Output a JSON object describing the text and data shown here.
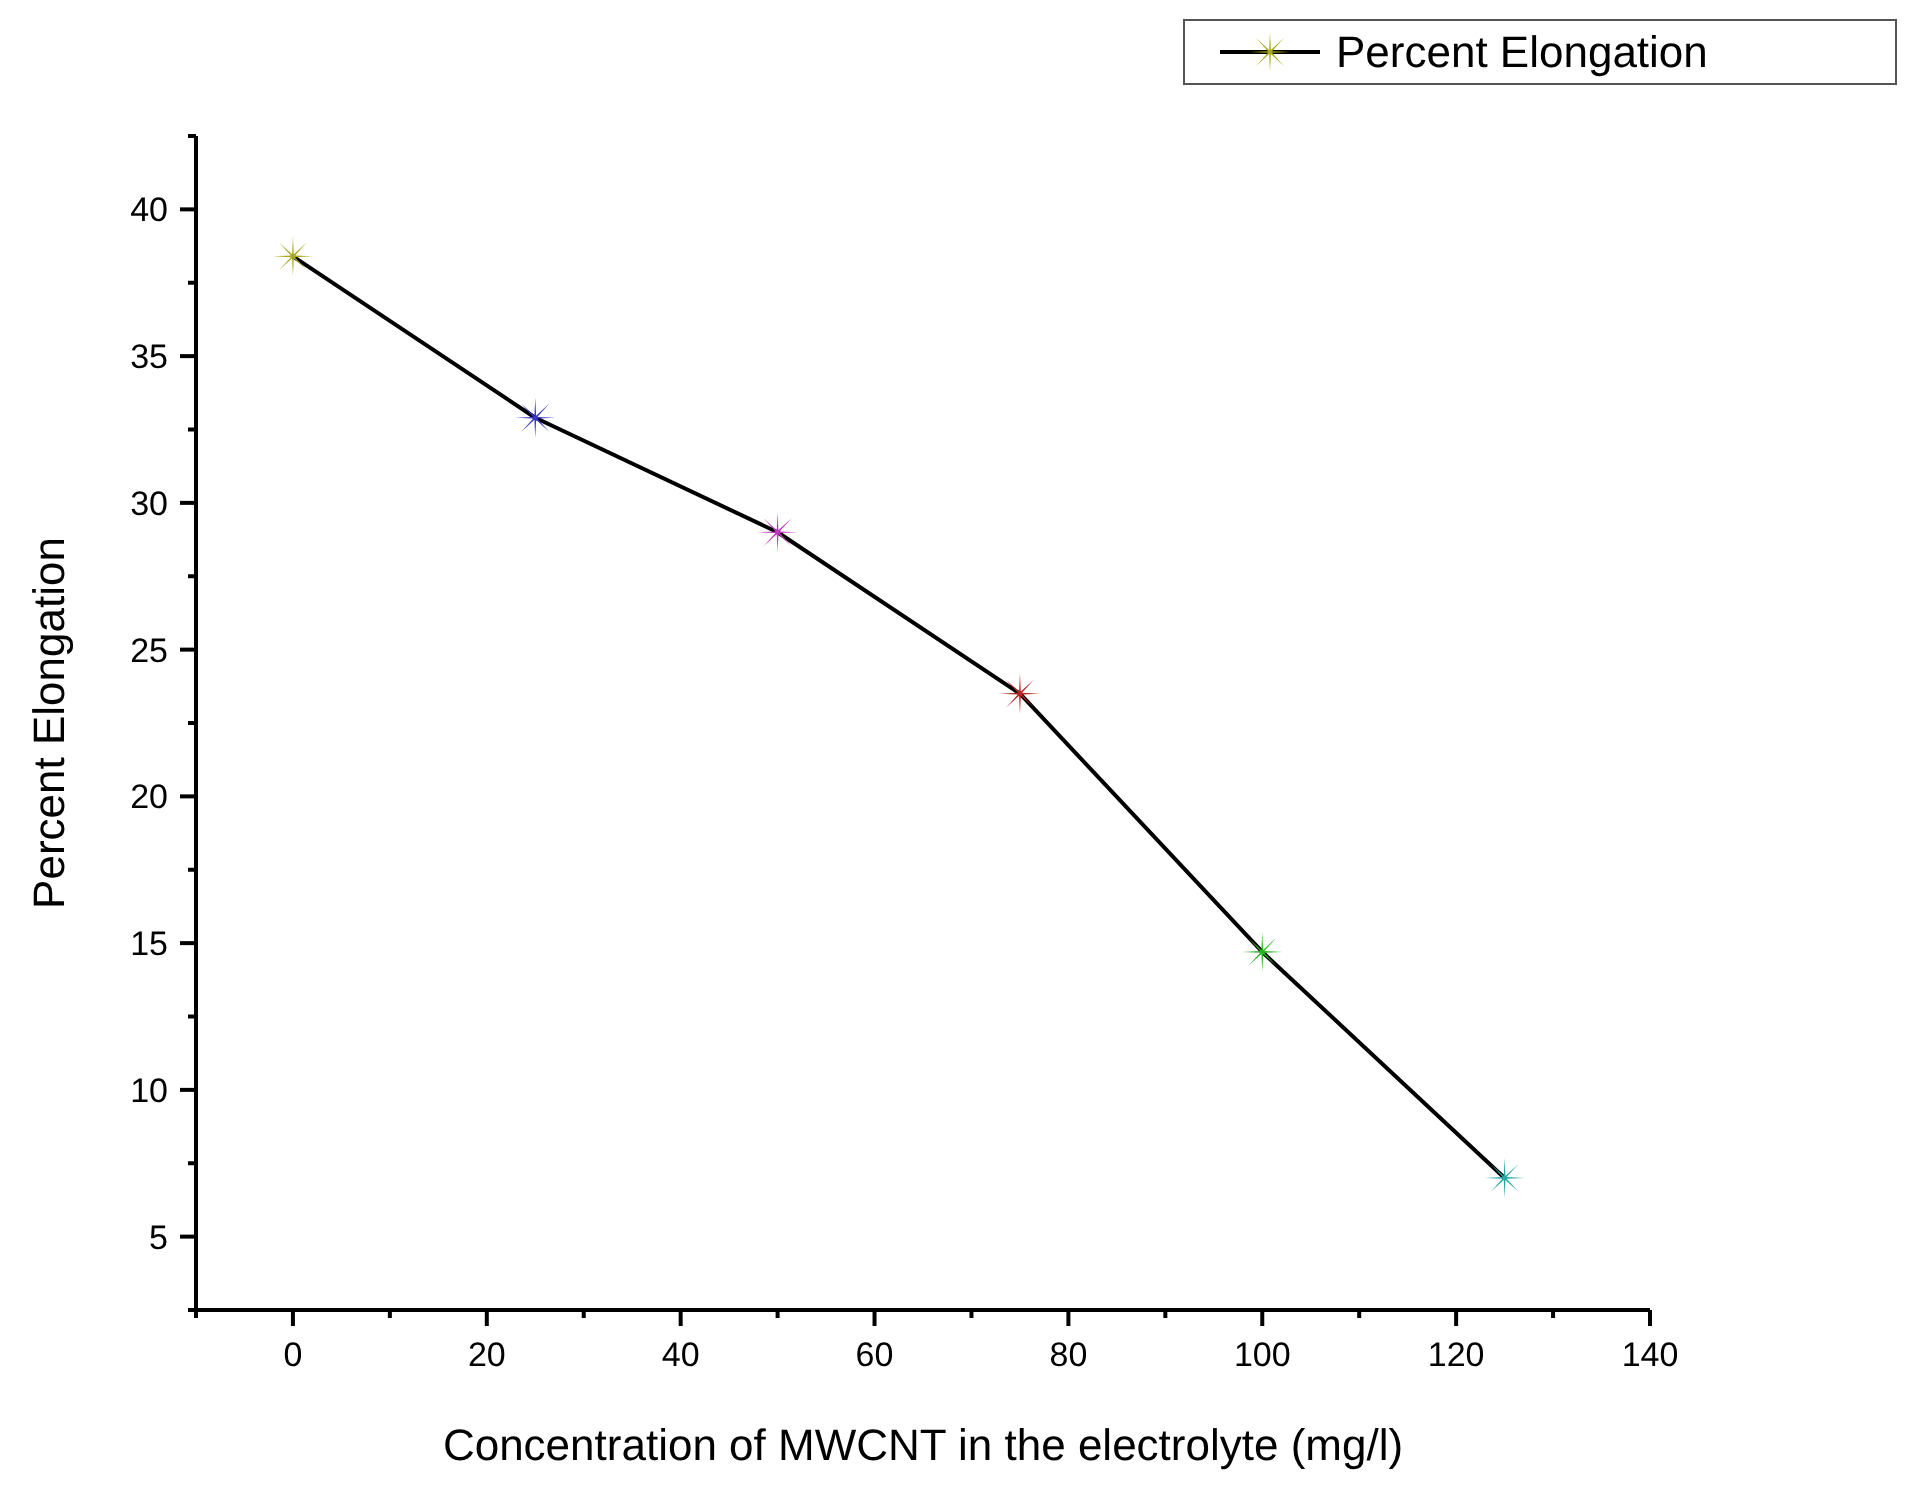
{
  "chart_data": {
    "type": "line",
    "xlabel": "Concentration of MWCNT in the electrolyte (mg/l)",
    "ylabel": "Percent Elongation",
    "x": [
      0,
      25,
      50,
      75,
      100,
      125
    ],
    "series": [
      {
        "name": "Percent Elongation",
        "color": "#000000",
        "values": [
          38.4,
          32.9,
          29.0,
          23.5,
          14.7,
          7.0
        ],
        "colors": [
          "#a8a820",
          "#3535c8",
          "#c035c0",
          "#b52525",
          "#25b525",
          "#25a8a8"
        ]
      }
    ],
    "xlim": [
      -10,
      140
    ],
    "xticks": [
      {
        "value": -10,
        "label": null
      },
      0,
      {
        "value": 10,
        "label": null
      },
      20,
      {
        "value": 30,
        "label": null
      },
      40,
      {
        "value": 50,
        "label": null
      },
      60,
      {
        "value": 70,
        "label": null
      },
      80,
      {
        "value": 90,
        "label": null
      },
      100,
      {
        "value": 110,
        "label": null
      },
      120,
      {
        "value": 130,
        "label": null
      },
      140
    ],
    "ylim": [
      2.5,
      42.5
    ],
    "yticks": [
      {
        "value": 2.5,
        "label": null
      },
      5,
      {
        "value": 7.5,
        "label": null
      },
      10,
      {
        "value": 12.5,
        "label": null
      },
      15,
      {
        "value": 17.5,
        "label": null
      },
      20,
      {
        "value": 22.5,
        "label": null
      },
      25,
      {
        "value": 27.5,
        "label": null
      },
      30,
      {
        "value": 32.5,
        "label": null
      },
      35,
      {
        "value": 37.5,
        "label": null
      },
      40,
      {
        "value": 42.5,
        "label": null
      }
    ],
    "marker": "cross",
    "line_style": "solid",
    "grid": false,
    "legend": "top right"
  }
}
